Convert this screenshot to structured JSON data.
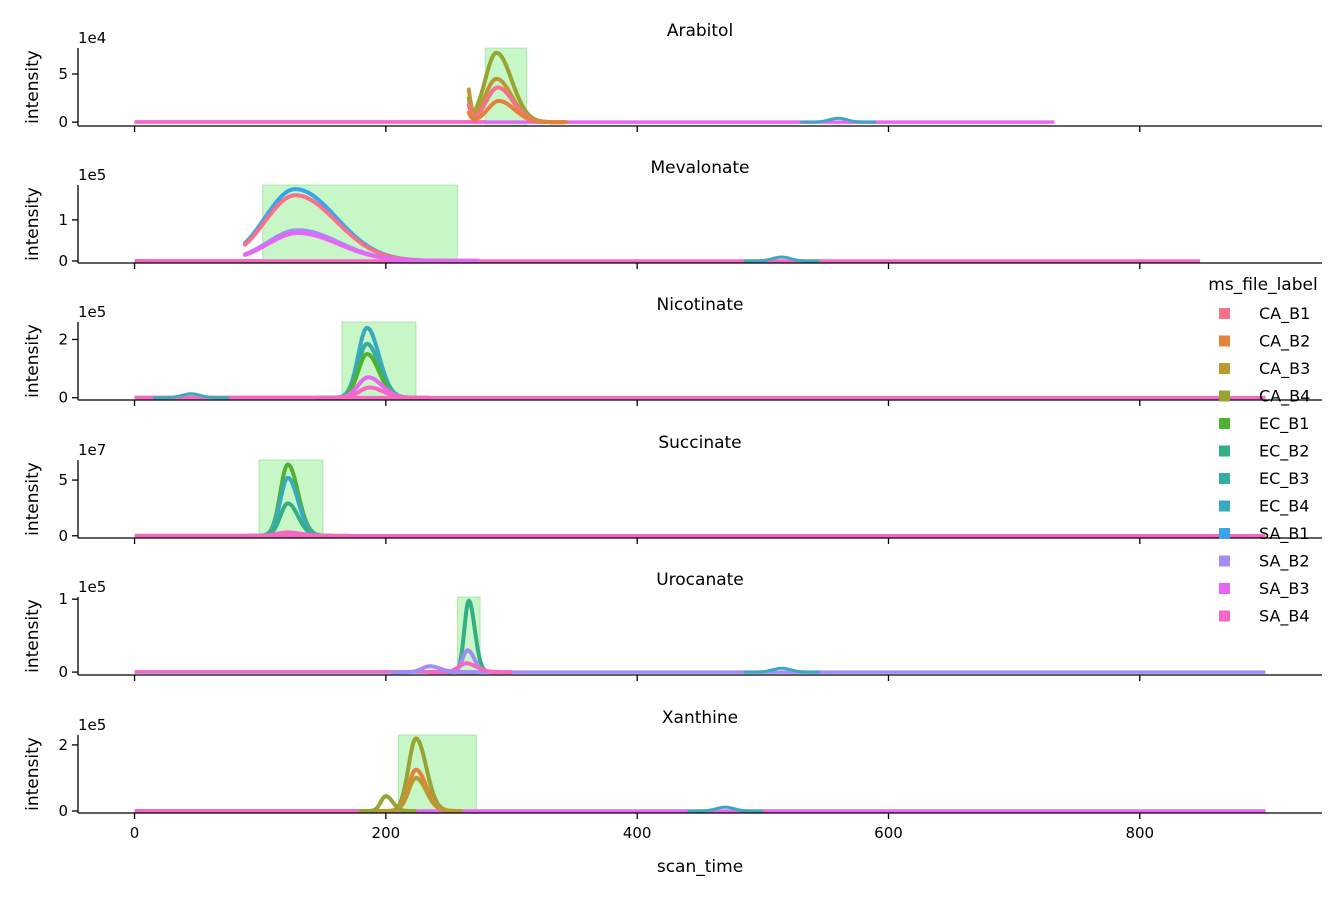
{
  "chart_data": {
    "type": "line",
    "xlabel": "scan_time",
    "ylabel": "intensity",
    "xlim": [
      -45,
      945
    ],
    "xticks": [
      0,
      200,
      400,
      600,
      800
    ],
    "xtick_labels": [
      "0",
      "200",
      "400",
      "600",
      "800"
    ],
    "legend": {
      "title": "ms_file_label",
      "placement": "right",
      "entries": [
        {
          "name": "CA_B1",
          "color": "#f77189"
        },
        {
          "name": "CA_B2",
          "color": "#e5823a"
        },
        {
          "name": "CA_B3",
          "color": "#bb9832"
        },
        {
          "name": "CA_B4",
          "color": "#97a431"
        },
        {
          "name": "EC_B1",
          "color": "#50b131"
        },
        {
          "name": "EC_B2",
          "color": "#34af84"
        },
        {
          "name": "EC_B3",
          "color": "#36ada4"
        },
        {
          "name": "EC_B4",
          "color": "#38aabf"
        },
        {
          "name": "SA_B1",
          "color": "#3ba3ec"
        },
        {
          "name": "SA_B2",
          "color": "#a48cf4"
        },
        {
          "name": "SA_B3",
          "color": "#e866f4"
        },
        {
          "name": "SA_B4",
          "color": "#f668c2"
        }
      ]
    },
    "highlight_color": "#90ee90",
    "panels": [
      {
        "title": "Arabitol",
        "exponent": "1e4",
        "ylim": [
          -0.4,
          7.7
        ],
        "yticks": [
          0,
          5
        ],
        "ytick_labels": [
          "0",
          "5"
        ],
        "highlight": [
          279,
          312
        ],
        "scan_range": [
          0,
          732
        ],
        "late_series": "SA_B3",
        "bump_at": 560,
        "peaks": [
          {
            "series": "CA_B4",
            "center": 288,
            "height": 7.2,
            "width": 9,
            "start": 266,
            "edge": 2.5
          },
          {
            "series": "CA_B3",
            "center": 288,
            "height": 4.5,
            "width": 9,
            "start": 266,
            "edge": 3.4
          },
          {
            "series": "CA_B1",
            "center": 289,
            "height": 3.6,
            "width": 9,
            "start": 266,
            "edge": 1.8
          },
          {
            "series": "CA_B2",
            "center": 290,
            "height": 2.2,
            "width": 9,
            "start": 266,
            "edge": 1.0
          }
        ]
      },
      {
        "title": "Mevalonate",
        "exponent": "1e5",
        "ylim": [
          -0.05,
          1.85
        ],
        "yticks": [
          0,
          1
        ],
        "ytick_labels": [
          "0",
          "1"
        ],
        "highlight": [
          102,
          257
        ],
        "scan_range": [
          0,
          848
        ],
        "late_series": "SA_B4",
        "bump_at": 515,
        "peaks": [
          {
            "series": "SA_B1",
            "center": 128,
            "height": 1.75,
            "width": 24,
            "start": 88,
            "edge": 0
          },
          {
            "series": "CA_B1",
            "center": 128,
            "height": 1.6,
            "width": 24,
            "start": 88,
            "edge": 0
          },
          {
            "series": "SA_B2",
            "center": 130,
            "height": 0.75,
            "width": 24,
            "start": 88,
            "edge": 0
          },
          {
            "series": "SA_B3",
            "center": 130,
            "height": 0.68,
            "width": 24,
            "start": 88,
            "edge": 0
          }
        ]
      },
      {
        "title": "Nicotinate",
        "exponent": "1e5",
        "ylim": [
          -0.08,
          2.6
        ],
        "yticks": [
          0,
          2
        ],
        "ytick_labels": [
          "0",
          "2"
        ],
        "highlight": [
          165,
          224
        ],
        "scan_range": [
          0,
          900
        ],
        "late_series": "SA_B4",
        "bump_at": 45,
        "peaks": [
          {
            "series": "EC_B4",
            "center": 185,
            "height": 2.4,
            "width": 7,
            "start": 0,
            "edge": 0
          },
          {
            "series": "EC_B3",
            "center": 185,
            "height": 1.85,
            "width": 7,
            "start": 0,
            "edge": 0
          },
          {
            "series": "EC_B1",
            "center": 185,
            "height": 1.5,
            "width": 7,
            "start": 0,
            "edge": 0
          },
          {
            "series": "SA_B3",
            "center": 186,
            "height": 0.7,
            "width": 8,
            "start": 0,
            "edge": 0
          },
          {
            "series": "SA_B4",
            "center": 187,
            "height": 0.35,
            "width": 8,
            "start": 0,
            "edge": 0
          }
        ]
      },
      {
        "title": "Succinate",
        "exponent": "1e7",
        "ylim": [
          -0.2,
          6.8
        ],
        "yticks": [
          0,
          5
        ],
        "ytick_labels": [
          "0",
          "5"
        ],
        "highlight": [
          99,
          150
        ],
        "scan_range": [
          0,
          900
        ],
        "late_series": "SA_B4",
        "bump_at": 0,
        "peaks": [
          {
            "series": "EC_B1",
            "center": 122,
            "height": 6.4,
            "width": 6,
            "start": 0,
            "edge": 0
          },
          {
            "series": "EC_B4",
            "center": 122,
            "height": 5.2,
            "width": 6,
            "start": 0,
            "edge": 0
          },
          {
            "series": "EC_B2",
            "center": 122,
            "height": 2.9,
            "width": 6,
            "start": 0,
            "edge": 0
          },
          {
            "series": "SA_B4",
            "center": 122,
            "height": 0.3,
            "width": 8,
            "start": 0,
            "edge": 0
          }
        ]
      },
      {
        "title": "Urocanate",
        "exponent": "1e5",
        "ylim": [
          -0.04,
          1.03
        ],
        "yticks": [
          0,
          1
        ],
        "ytick_labels": [
          "0",
          "1"
        ],
        "highlight": [
          257,
          275
        ],
        "scan_range": [
          0,
          900
        ],
        "late_series": "SA_B2",
        "bump_at": 515,
        "peaks": [
          {
            "series": "EC_B2",
            "center": 266,
            "height": 0.98,
            "width": 3.5,
            "start": 0,
            "edge": 0
          },
          {
            "series": "SA_B2",
            "center": 265,
            "height": 0.3,
            "width": 4,
            "start": 0,
            "edge": 0
          },
          {
            "series": "SA_B4",
            "center": 264,
            "height": 0.12,
            "width": 6,
            "start": 0,
            "edge": 0
          },
          {
            "series": "SA_B2",
            "center": 235,
            "height": 0.08,
            "width": 6,
            "start": 0,
            "edge": 0
          }
        ]
      },
      {
        "title": "Xanthine",
        "exponent": "1e5",
        "ylim": [
          -0.06,
          2.3
        ],
        "yticks": [
          0,
          2
        ],
        "ytick_labels": [
          "0",
          "2"
        ],
        "highlight": [
          210,
          272
        ],
        "scan_range": [
          0,
          900
        ],
        "late_series": "SA_B3",
        "bump_at": 470,
        "peaks": [
          {
            "series": "CA_B4",
            "center": 224,
            "height": 2.2,
            "width": 6,
            "start": 0,
            "edge": 0
          },
          {
            "series": "CA_B2",
            "center": 224,
            "height": 1.25,
            "width": 6,
            "start": 0,
            "edge": 0
          },
          {
            "series": "CA_B3",
            "center": 224,
            "height": 1.0,
            "width": 6,
            "start": 0,
            "edge": 0
          },
          {
            "series": "CA_B4",
            "center": 200,
            "height": 0.45,
            "width": 4,
            "start": 0,
            "edge": 0
          }
        ]
      }
    ]
  }
}
